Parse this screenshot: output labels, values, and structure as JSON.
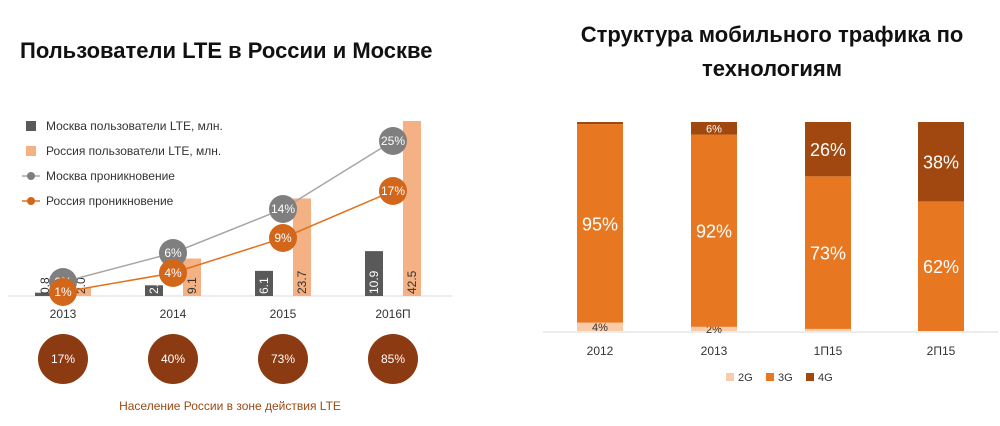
{
  "colors": {
    "moscow_bar": "#595959",
    "russia_bar": "#f4b183",
    "moscow_line": "#a6a6a6",
    "moscow_marker": "#7f7f7f",
    "russia_line": "#e2711d",
    "russia_marker": "#d2661b",
    "lte_circle": "#8b3a12",
    "caption_text": "#9b4a14",
    "c2g": "#f9cba8",
    "c3g": "#e87722",
    "c4g": "#a0480f"
  },
  "chart_data": [
    {
      "type": "bar",
      "title": "Пользователи LTE в России и Москве",
      "categories": [
        "2013",
        "2014",
        "2015",
        "2016П"
      ],
      "series": [
        {
          "name": "Москва пользователи LTE, млн.",
          "kind": "bar",
          "values": [
            0.8,
            2.6,
            6.1,
            10.9
          ],
          "labels": [
            "0.8",
            "2.6",
            "6.1",
            "10.9"
          ]
        },
        {
          "name": "Россия пользователи LTE, млн.",
          "kind": "bar",
          "values": [
            2.0,
            9.1,
            23.7,
            42.5
          ],
          "labels": [
            "2.0",
            "9.1",
            "23.7",
            "42.5"
          ]
        },
        {
          "name": "Москва проникновение",
          "kind": "line",
          "values": [
            2,
            6,
            14,
            25
          ],
          "labels": [
            "2%",
            "6%",
            "14%",
            "25%"
          ]
        },
        {
          "name": "Россия проникновение",
          "kind": "line",
          "values": [
            1,
            4,
            9,
            17
          ],
          "labels": [
            "1%",
            "4%",
            "9%",
            "17%"
          ]
        }
      ],
      "coverage": {
        "values": [
          17,
          40,
          73,
          85
        ],
        "labels": [
          "17%",
          "40%",
          "73%",
          "85%"
        ],
        "caption": "Население России в зоне действия LTE"
      },
      "bar_ylim": [
        0,
        42.5
      ],
      "line_ylim": [
        0,
        25
      ],
      "legend_position": "top-left"
    },
    {
      "type": "bar",
      "stacked": true,
      "title_lines": [
        "Структура мобильного трафика по",
        "технологиям"
      ],
      "categories": [
        "2012",
        "2013",
        "1П15",
        "2П15"
      ],
      "series": [
        {
          "name": "2G",
          "values": [
            4,
            2,
            1,
            0
          ],
          "labels": [
            "4%",
            "2%",
            "",
            ""
          ]
        },
        {
          "name": "3G",
          "values": [
            95,
            92,
            73,
            62
          ],
          "labels": [
            "95%",
            "92%",
            "73%",
            "62%"
          ]
        },
        {
          "name": "4G",
          "values": [
            1,
            6,
            26,
            38
          ],
          "labels": [
            "",
            "6%",
            "26%",
            "38%"
          ]
        }
      ],
      "ylim": [
        0,
        100
      ],
      "legend_position": "bottom"
    }
  ]
}
